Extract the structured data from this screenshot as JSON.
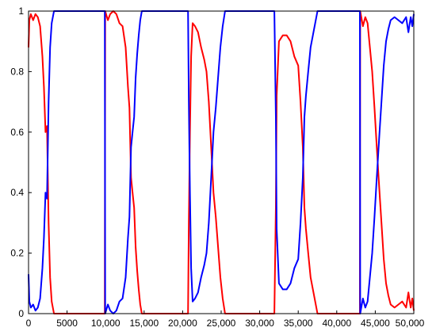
{
  "chart_data": {
    "type": "line",
    "title": "",
    "xlabel": "",
    "ylabel": "",
    "xlim": [
      0,
      50000
    ],
    "ylim": [
      0,
      1
    ],
    "x_ticks": [
      0,
      5000,
      10000,
      15000,
      20000,
      25000,
      30000,
      35000,
      40000,
      45000,
      50000
    ],
    "x_tick_labels": [
      "0",
      "5000",
      "10,000",
      "15,000",
      "20,000",
      "25,000",
      "30,000",
      "35,000",
      "40,000",
      "45,000",
      "50,000"
    ],
    "y_ticks": [
      0,
      0.2,
      0.4,
      0.6,
      0.8,
      1
    ],
    "y_tick_labels": [
      "0",
      "0.2",
      "0.4",
      "0.6",
      "0.8",
      "1"
    ],
    "grid": false,
    "series": [
      {
        "color": "#ff0000",
        "points": [
          [
            0,
            0.88
          ],
          [
            100,
            0.97
          ],
          [
            300,
            0.99
          ],
          [
            600,
            0.97
          ],
          [
            900,
            0.99
          ],
          [
            1200,
            0.98
          ],
          [
            1500,
            0.95
          ],
          [
            1800,
            0.85
          ],
          [
            2000,
            0.75
          ],
          [
            2200,
            0.6
          ],
          [
            2400,
            0.62
          ],
          [
            2600,
            0.3
          ],
          [
            2800,
            0.12
          ],
          [
            3000,
            0.04
          ],
          [
            3300,
            0.0
          ],
          [
            9900,
            0.0
          ],
          [
            9950,
            1.0
          ],
          [
            10300,
            0.97
          ],
          [
            10600,
            0.99
          ],
          [
            11000,
            1.0
          ],
          [
            11400,
            0.99
          ],
          [
            11800,
            0.96
          ],
          [
            12200,
            0.95
          ],
          [
            12600,
            0.88
          ],
          [
            12900,
            0.75
          ],
          [
            13100,
            0.68
          ],
          [
            13300,
            0.45
          ],
          [
            13500,
            0.4
          ],
          [
            13700,
            0.35
          ],
          [
            13900,
            0.22
          ],
          [
            14100,
            0.14
          ],
          [
            14300,
            0.08
          ],
          [
            14500,
            0.03
          ],
          [
            14700,
            0.0
          ],
          [
            20700,
            0.0
          ],
          [
            20800,
            0.3
          ],
          [
            20950,
            0.6
          ],
          [
            21100,
            0.85
          ],
          [
            21300,
            0.96
          ],
          [
            21600,
            0.95
          ],
          [
            22000,
            0.93
          ],
          [
            22400,
            0.88
          ],
          [
            22800,
            0.84
          ],
          [
            23100,
            0.8
          ],
          [
            23400,
            0.7
          ],
          [
            23700,
            0.55
          ],
          [
            24000,
            0.4
          ],
          [
            24300,
            0.32
          ],
          [
            24600,
            0.22
          ],
          [
            24900,
            0.12
          ],
          [
            25200,
            0.05
          ],
          [
            25500,
            0.0
          ],
          [
            31900,
            0.0
          ],
          [
            32100,
            0.35
          ],
          [
            32200,
            0.72
          ],
          [
            32500,
            0.9
          ],
          [
            33000,
            0.92
          ],
          [
            33500,
            0.92
          ],
          [
            34000,
            0.9
          ],
          [
            34500,
            0.85
          ],
          [
            35000,
            0.82
          ],
          [
            35300,
            0.7
          ],
          [
            35600,
            0.55
          ],
          [
            35800,
            0.35
          ],
          [
            36000,
            0.28
          ],
          [
            36300,
            0.2
          ],
          [
            36600,
            0.12
          ],
          [
            36900,
            0.08
          ],
          [
            37200,
            0.04
          ],
          [
            37500,
            0.0
          ],
          [
            43000,
            0.0
          ],
          [
            43050,
            1.0
          ],
          [
            43400,
            0.95
          ],
          [
            43700,
            0.98
          ],
          [
            44000,
            0.96
          ],
          [
            44300,
            0.88
          ],
          [
            44600,
            0.8
          ],
          [
            44900,
            0.68
          ],
          [
            45200,
            0.55
          ],
          [
            45500,
            0.42
          ],
          [
            45800,
            0.3
          ],
          [
            46100,
            0.18
          ],
          [
            46400,
            0.1
          ],
          [
            46700,
            0.06
          ],
          [
            47000,
            0.03
          ],
          [
            47500,
            0.02
          ],
          [
            48000,
            0.03
          ],
          [
            48500,
            0.04
          ],
          [
            49000,
            0.02
          ],
          [
            49300,
            0.07
          ],
          [
            49600,
            0.02
          ],
          [
            49800,
            0.05
          ],
          [
            50000,
            0.01
          ]
        ]
      },
      {
        "color": "#0000ff",
        "points": [
          [
            0,
            0.13
          ],
          [
            100,
            0.04
          ],
          [
            300,
            0.02
          ],
          [
            600,
            0.03
          ],
          [
            900,
            0.01
          ],
          [
            1200,
            0.02
          ],
          [
            1500,
            0.05
          ],
          [
            1800,
            0.15
          ],
          [
            2000,
            0.25
          ],
          [
            2200,
            0.4
          ],
          [
            2400,
            0.38
          ],
          [
            2600,
            0.7
          ],
          [
            2800,
            0.88
          ],
          [
            3000,
            0.96
          ],
          [
            3300,
            1.0
          ],
          [
            9900,
            1.0
          ],
          [
            9950,
            0.0
          ],
          [
            10300,
            0.03
          ],
          [
            10600,
            0.01
          ],
          [
            11000,
            0.0
          ],
          [
            11400,
            0.01
          ],
          [
            11800,
            0.04
          ],
          [
            12200,
            0.05
          ],
          [
            12600,
            0.12
          ],
          [
            12900,
            0.25
          ],
          [
            13100,
            0.32
          ],
          [
            13300,
            0.55
          ],
          [
            13500,
            0.6
          ],
          [
            13700,
            0.65
          ],
          [
            13900,
            0.78
          ],
          [
            14100,
            0.86
          ],
          [
            14300,
            0.92
          ],
          [
            14500,
            0.97
          ],
          [
            14700,
            1.0
          ],
          [
            20700,
            1.0
          ],
          [
            20800,
            0.7
          ],
          [
            20950,
            0.4
          ],
          [
            21100,
            0.15
          ],
          [
            21300,
            0.04
          ],
          [
            21600,
            0.05
          ],
          [
            22000,
            0.07
          ],
          [
            22400,
            0.12
          ],
          [
            22800,
            0.16
          ],
          [
            23100,
            0.2
          ],
          [
            23400,
            0.3
          ],
          [
            23700,
            0.45
          ],
          [
            24000,
            0.6
          ],
          [
            24300,
            0.68
          ],
          [
            24600,
            0.78
          ],
          [
            24900,
            0.88
          ],
          [
            25200,
            0.95
          ],
          [
            25500,
            1.0
          ],
          [
            31900,
            1.0
          ],
          [
            32100,
            0.65
          ],
          [
            32200,
            0.28
          ],
          [
            32500,
            0.1
          ],
          [
            33000,
            0.08
          ],
          [
            33500,
            0.08
          ],
          [
            34000,
            0.1
          ],
          [
            34500,
            0.15
          ],
          [
            35000,
            0.18
          ],
          [
            35300,
            0.3
          ],
          [
            35600,
            0.45
          ],
          [
            35800,
            0.65
          ],
          [
            36000,
            0.72
          ],
          [
            36300,
            0.8
          ],
          [
            36600,
            0.88
          ],
          [
            36900,
            0.92
          ],
          [
            37200,
            0.96
          ],
          [
            37500,
            1.0
          ],
          [
            43000,
            1.0
          ],
          [
            43050,
            0.0
          ],
          [
            43400,
            0.05
          ],
          [
            43700,
            0.02
          ],
          [
            44000,
            0.04
          ],
          [
            44300,
            0.12
          ],
          [
            44600,
            0.2
          ],
          [
            44900,
            0.32
          ],
          [
            45200,
            0.45
          ],
          [
            45500,
            0.58
          ],
          [
            45800,
            0.7
          ],
          [
            46100,
            0.82
          ],
          [
            46400,
            0.9
          ],
          [
            46700,
            0.94
          ],
          [
            47000,
            0.97
          ],
          [
            47500,
            0.98
          ],
          [
            48000,
            0.97
          ],
          [
            48500,
            0.96
          ],
          [
            49000,
            0.98
          ],
          [
            49300,
            0.93
          ],
          [
            49600,
            0.98
          ],
          [
            49800,
            0.95
          ],
          [
            50000,
            0.99
          ]
        ]
      }
    ]
  }
}
